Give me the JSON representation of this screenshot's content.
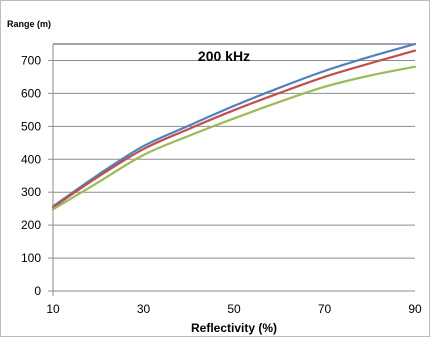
{
  "chart_data": {
    "type": "line",
    "title": "",
    "ylabel": "Range (m)",
    "xlabel": "Reflectivity (%)",
    "annotation": "200 kHz",
    "xlim": [
      10,
      90
    ],
    "ylim": [
      0,
      750
    ],
    "x_ticks": [
      10,
      30,
      50,
      70,
      90
    ],
    "y_ticks": [
      0,
      100,
      200,
      300,
      400,
      500,
      600,
      700
    ],
    "grid": "horizontal",
    "reference_line": {
      "y": 750,
      "color": "#7f6084"
    },
    "x": [
      10,
      20,
      30,
      40,
      50,
      60,
      70,
      80,
      90
    ],
    "series": [
      {
        "color": "#4f81bd",
        "values": [
          257,
          353,
          440,
          502,
          562,
          617,
          668,
          711,
          750
        ]
      },
      {
        "color": "#c0504d",
        "values": [
          254,
          347,
          431,
          492,
          549,
          601,
          650,
          691,
          730
        ]
      },
      {
        "color": "#9bbb59",
        "values": [
          248,
          330,
          413,
          471,
          524,
          574,
          620,
          654,
          681
        ]
      }
    ]
  }
}
